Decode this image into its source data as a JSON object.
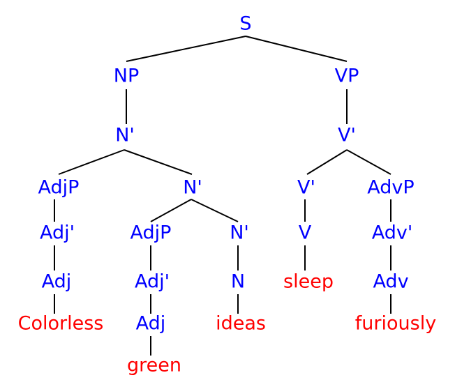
{
  "nodes": [
    {
      "label": "S"
    },
    {
      "label": "NP"
    },
    {
      "label": "VP"
    },
    {
      "label": "N'"
    },
    {
      "label": "V'"
    },
    {
      "label": "AdjP"
    },
    {
      "label": "N'"
    },
    {
      "label": "V'"
    },
    {
      "label": "AdvP"
    },
    {
      "label": "Adj'"
    },
    {
      "label": "AdjP"
    },
    {
      "label": "N'"
    },
    {
      "label": "V"
    },
    {
      "label": "Adv'"
    },
    {
      "label": "Adj"
    },
    {
      "label": "Adj'"
    },
    {
      "label": "N"
    },
    {
      "label": "sleep"
    },
    {
      "label": "Adv"
    },
    {
      "label": "Colorless"
    },
    {
      "label": "Adj"
    },
    {
      "label": "ideas"
    },
    {
      "label": "furiously"
    },
    {
      "label": "green"
    }
  ]
}
